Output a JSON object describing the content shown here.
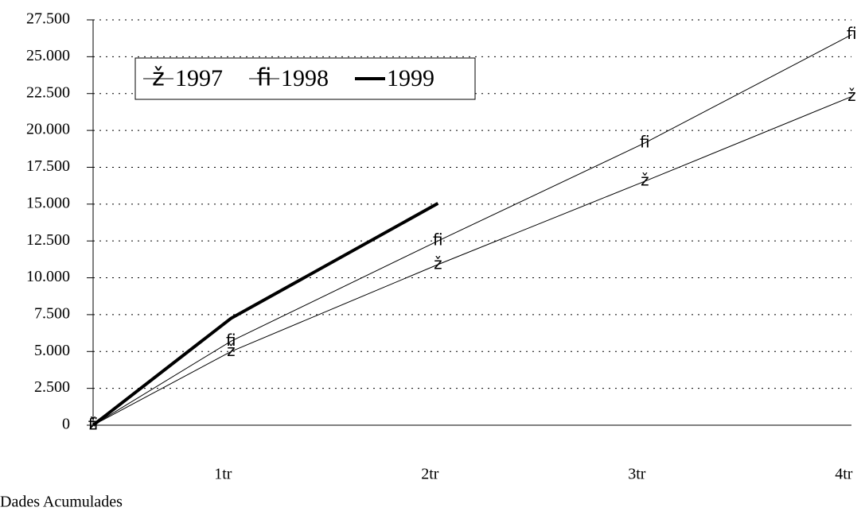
{
  "chart_data": {
    "type": "line",
    "categories": [
      null,
      "1tr",
      "2tr",
      "3tr",
      "4tr"
    ],
    "series": [
      {
        "name": "1997",
        "color": "#000000",
        "marker": "ž",
        "values": [
          0,
          5000,
          10900,
          16550,
          22300
        ]
      },
      {
        "name": "1998",
        "color": "#000000",
        "marker": "ﬁ",
        "values": [
          0,
          5700,
          12500,
          19150,
          26500
        ]
      },
      {
        "name": "1999",
        "color": "#000000",
        "values": [
          0,
          7250,
          15050,
          null,
          null
        ]
      }
    ],
    "ylim": [
      0,
      27500
    ],
    "yticks": [
      0,
      {
        "value": 2500,
        "label": "2.500"
      },
      {
        "value": 5000,
        "label": "5.000"
      },
      {
        "value": 7500,
        "label": "7.500"
      },
      {
        "value": 10000,
        "label": "10.000"
      },
      {
        "value": 12500,
        "label": "12.500"
      },
      {
        "value": 15000,
        "label": "15.000"
      },
      {
        "value": 17500,
        "label": "17.500"
      },
      {
        "value": 20000,
        "label": "20.000"
      },
      {
        "value": 22500,
        "label": "22.500"
      },
      {
        "value": 25000,
        "label": "25.000"
      },
      {
        "value": 27500,
        "label": "27.500"
      }
    ],
    "grid": true,
    "legend": "top-left",
    "footnote": "Dades Acumulades"
  }
}
